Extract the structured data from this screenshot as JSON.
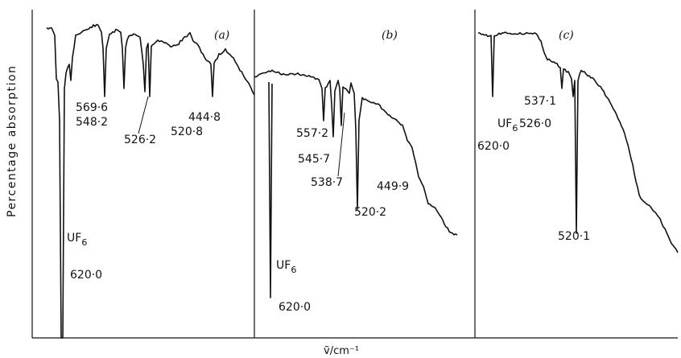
{
  "chart_data": {
    "type": "line",
    "ylabel": "Percentage  absorption",
    "xlabel": "ṽ/cm⁻¹",
    "panels": [
      {
        "label": "(a)",
        "peaks": [
          {
            "label": "569·6",
            "cm": 569.6,
            "depth": 0.3
          },
          {
            "label": "548·2",
            "cm": 548.2,
            "depth": 0.28
          },
          {
            "label": "526·2",
            "cm": 526.2,
            "depth": 0.26
          },
          {
            "label": "520·8",
            "cm": 520.8,
            "depth": 0.34
          },
          {
            "label": "444·8",
            "cm": 444.8,
            "depth": 0.22
          }
        ],
        "uf6": {
          "label_line1": "UF",
          "label_sub": "6",
          "label_line2": "620·0",
          "cm": 620.0
        }
      },
      {
        "label": "(b)",
        "peaks": [
          {
            "label": "557·2",
            "cm": 557.2,
            "depth": 0.18
          },
          {
            "label": "545·7",
            "cm": 545.7,
            "depth": 0.22
          },
          {
            "label": "538·7",
            "cm": 538.7,
            "depth": 0.2
          },
          {
            "label": "520·2",
            "cm": 520.2,
            "depth": 0.55
          },
          {
            "label": "449·9",
            "cm": 449.9,
            "depth": 0.1
          }
        ],
        "uf6": {
          "label_line1": "UF",
          "label_sub": "6",
          "label_line2": "620·0",
          "cm": 620.0
        }
      },
      {
        "label": "(c)",
        "peaks": [
          {
            "label": "537·1",
            "cm": 537.1,
            "depth": 0.1
          },
          {
            "label": "526·0",
            "cm": 526.0,
            "depth": 0.1
          },
          {
            "label": "520·1",
            "cm": 520.1,
            "depth": 0.62
          }
        ],
        "uf6": {
          "label_line1": "UF",
          "label_sub": "6",
          "label_line2": "620·0",
          "cm": 620.0
        }
      }
    ]
  }
}
